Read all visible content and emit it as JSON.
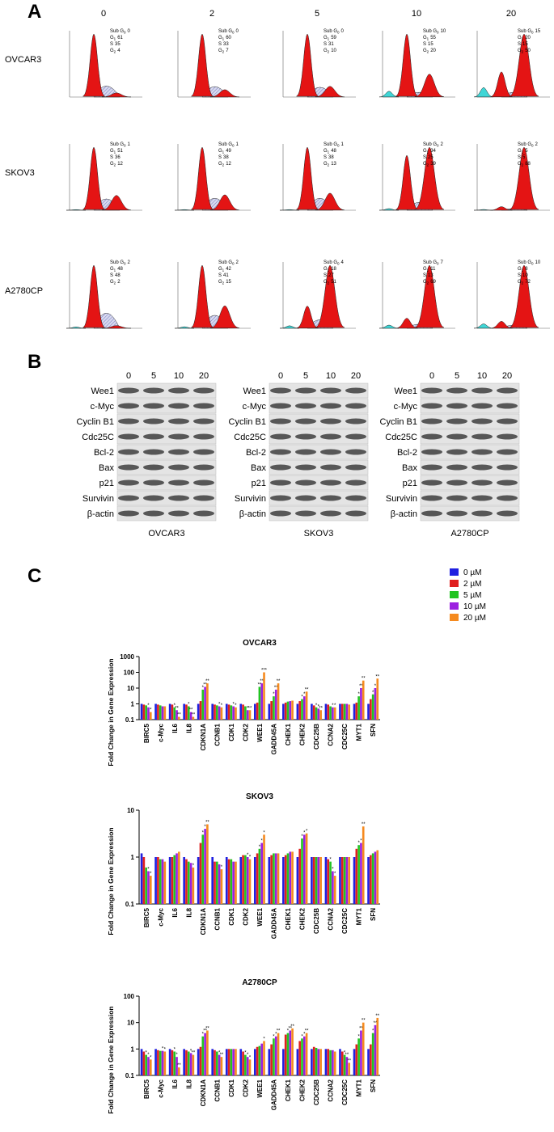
{
  "panel_a": {
    "label": "A",
    "columns": [
      0,
      2,
      5,
      10,
      20
    ],
    "phases": [
      {
        "label": "Sub G",
        "sub": "0"
      },
      {
        "label": "G",
        "sub": "1"
      },
      {
        "label": "S"
      },
      {
        "label": "G",
        "sub": "2"
      }
    ],
    "rows": [
      {
        "name": "OVCAR3",
        "values": [
          [
            0,
            61,
            35,
            4
          ],
          [
            0,
            60,
            33,
            7
          ],
          [
            0,
            59,
            31,
            10
          ],
          [
            10,
            55,
            15,
            20
          ],
          [
            15,
            20,
            15,
            50
          ]
        ]
      },
      {
        "name": "SKOV3",
        "values": [
          [
            1,
            51,
            36,
            12
          ],
          [
            1,
            49,
            38,
            12
          ],
          [
            1,
            48,
            38,
            13
          ],
          [
            2,
            34,
            25,
            39
          ],
          [
            2,
            5,
            5,
            88
          ]
        ]
      },
      {
        "name": "A2780CP",
        "values": [
          [
            2,
            48,
            48,
            2
          ],
          [
            2,
            42,
            41,
            15
          ],
          [
            4,
            18,
            27,
            51
          ],
          [
            7,
            11,
            13,
            69
          ],
          [
            10,
            8,
            10,
            72
          ]
        ]
      }
    ]
  },
  "panel_b": {
    "label": "B",
    "lanes": [
      0,
      5,
      10,
      20
    ],
    "proteins": [
      "Wee1",
      "c-Myc",
      "Cyclin B1",
      "Cdc25C",
      "Bcl-2",
      "Bax",
      "p21",
      "Survivin",
      "β-actin"
    ],
    "blots": [
      "OVCAR3",
      "SKOV3",
      "A2780CP"
    ]
  },
  "panel_c": {
    "label": "C"
  },
  "chart_data": [
    {
      "type": "bar",
      "title": "OVCAR3",
      "y_label": "Fold Change in Gene Expression",
      "log_scale": true,
      "ylim": [
        0.1,
        1000
      ],
      "yticks": [
        0.1,
        1,
        10,
        100,
        1000
      ],
      "categories": [
        "BIRC5",
        "c-Myc",
        "IL6",
        "IL8",
        "CDKN1A",
        "CCNB1",
        "CDK1",
        "CDK2",
        "WEE1",
        "GADD45A",
        "CHEK1",
        "CHEK2",
        "CDC25B",
        "CCNA2",
        "CDC25C",
        "MYT1",
        "SFN"
      ],
      "series": [
        {
          "name": "0 µM",
          "color": "#1f1fe0",
          "values": [
            1,
            1,
            1,
            1,
            1,
            1,
            1,
            1,
            1,
            1,
            1,
            1,
            1,
            1,
            1,
            1,
            1
          ]
        },
        {
          "name": "2 µM",
          "color": "#e01f1f",
          "values": [
            0.9,
            0.9,
            0.9,
            0.9,
            1.5,
            0.9,
            0.9,
            0.9,
            1.2,
            1.5,
            1.2,
            1.5,
            0.8,
            0.9,
            1,
            1.2,
            2
          ]
        },
        {
          "name": "5 µM",
          "color": "#22c422",
          "values": [
            0.8,
            0.8,
            0.6,
            0.7,
            8,
            0.8,
            0.8,
            0.7,
            12,
            3,
            1.4,
            2,
            0.6,
            0.7,
            1,
            3,
            4
          ],
          "stars": [
            null,
            null,
            "*",
            "*",
            "*",
            null,
            null,
            null,
            "**",
            "*",
            null,
            "*",
            "*",
            null,
            null,
            "*",
            "*"
          ]
        },
        {
          "name": "10 µM",
          "color": "#9b1fe0",
          "values": [
            0.6,
            0.7,
            0.4,
            0.3,
            12,
            0.7,
            0.7,
            0.4,
            20,
            8,
            1.5,
            3,
            0.5,
            0.6,
            1,
            10,
            10
          ],
          "stars": [
            "*",
            null,
            "**",
            "**",
            "**",
            "*",
            "*",
            "*",
            "**",
            "**",
            null,
            "*",
            "*",
            "*",
            null,
            "**",
            "*"
          ]
        },
        {
          "name": "20 µM",
          "color": "#f58a1f",
          "values": [
            0.3,
            0.7,
            0.15,
            0.15,
            20,
            0.6,
            0.6,
            0.4,
            100,
            20,
            1.6,
            6,
            0.4,
            0.6,
            0.9,
            30,
            40
          ],
          "stars": [
            "*",
            null,
            "**",
            "**",
            "**",
            "*",
            "*",
            "**",
            "***",
            "**",
            null,
            "**",
            "**",
            "*",
            null,
            "**",
            "**"
          ]
        }
      ]
    },
    {
      "type": "bar",
      "title": "SKOV3",
      "y_label": "Fold Change in Gene Expression",
      "log_scale": true,
      "ylim": [
        0.1,
        10
      ],
      "yticks": [
        0.1,
        1,
        10
      ],
      "categories": [
        "BIRC5",
        "c-Myc",
        "IL6",
        "IL8",
        "CDKN1A",
        "CCNB1",
        "CDK1",
        "CDK2",
        "WEE1",
        "GADD45A",
        "CHEK1",
        "CHEK2",
        "CDC25B",
        "CCNA2",
        "CDC25C",
        "MYT1",
        "SFN"
      ],
      "series": [
        {
          "values": [
            1.2,
            1,
            1,
            1,
            1,
            1,
            1,
            1,
            1,
            1,
            1,
            1,
            1,
            1,
            1,
            1,
            1
          ]
        },
        {
          "values": [
            1,
            1,
            1,
            0.9,
            2,
            0.8,
            0.9,
            1.1,
            1.2,
            1.1,
            1.1,
            1.5,
            1,
            0.9,
            1,
            1.5,
            1.1
          ]
        },
        {
          "values": [
            0.6,
            0.9,
            1.1,
            0.8,
            3,
            0.8,
            0.9,
            1.1,
            1.5,
            1.2,
            1.2,
            2.5,
            1,
            0.8,
            1,
            1.8,
            1.2
          ],
          "stars": [
            null,
            null,
            null,
            null,
            "*",
            null,
            null,
            null,
            "*",
            null,
            null,
            "*",
            null,
            "*",
            null,
            "*",
            null
          ]
        },
        {
          "values": [
            0.5,
            0.9,
            1.2,
            0.75,
            4,
            0.7,
            0.8,
            1,
            2,
            1.2,
            1.3,
            3,
            1,
            0.5,
            1,
            2,
            1.3
          ],
          "stars": [
            "*",
            null,
            null,
            null,
            "*",
            null,
            null,
            "*",
            "*",
            null,
            null,
            "*",
            null,
            "*",
            null,
            "*",
            null
          ]
        },
        {
          "values": [
            0.4,
            0.8,
            1.3,
            0.6,
            5,
            0.55,
            0.8,
            0.9,
            3,
            1.2,
            1.3,
            3.2,
            1,
            0.4,
            1,
            4.5,
            1.4
          ],
          "stars": [
            "*",
            null,
            null,
            "*",
            "**",
            "*",
            null,
            "*",
            "*",
            null,
            null,
            "*",
            null,
            "*",
            null,
            "**",
            null
          ]
        }
      ]
    },
    {
      "type": "bar",
      "title": "A2780CP",
      "y_label": "Fold Change in Gene Expression",
      "log_scale": true,
      "ylim": [
        0.1,
        100
      ],
      "yticks": [
        0.1,
        1,
        10,
        100
      ],
      "categories": [
        "BIRC5",
        "c-Myc",
        "IL6",
        "IL8",
        "CDKN1A",
        "CCNB1",
        "CDK1",
        "CDK2",
        "WEE1",
        "GADD45A",
        "CHEK1",
        "CHEK2",
        "CDC25B",
        "CCNA2",
        "CDC25C",
        "MYT1",
        "SFN"
      ],
      "series": [
        {
          "values": [
            1,
            1,
            1,
            1,
            1,
            1,
            1,
            1,
            1,
            1,
            1,
            1,
            1,
            1,
            1,
            1,
            1
          ]
        },
        {
          "values": [
            0.8,
            0.9,
            0.9,
            0.9,
            1.2,
            0.9,
            1,
            0.8,
            1.2,
            1.5,
            3.5,
            2,
            1.2,
            1,
            0.8,
            1.5,
            1.5
          ]
        },
        {
          "values": [
            0.6,
            0.85,
            0.8,
            0.8,
            3,
            0.8,
            1,
            0.6,
            1.3,
            2.5,
            4,
            2.5,
            1.1,
            0.9,
            0.6,
            2.5,
            4
          ],
          "stars": [
            "*",
            null,
            "*",
            null,
            "*",
            null,
            null,
            "*",
            null,
            "*",
            "*",
            "*",
            null,
            null,
            "*",
            "*",
            "*"
          ]
        },
        {
          "values": [
            0.5,
            0.85,
            0.5,
            0.7,
            4,
            0.6,
            1,
            0.5,
            1.6,
            3,
            5,
            3,
            1,
            0.9,
            0.5,
            5,
            8
          ],
          "stars": [
            "*",
            "*",
            "*",
            "*",
            "**",
            "*",
            null,
            "*",
            null,
            "*",
            "**",
            "*",
            null,
            null,
            "**",
            "**",
            "**"
          ]
        },
        {
          "values": [
            0.4,
            0.8,
            0.2,
            0.6,
            5,
            0.5,
            1,
            0.4,
            2,
            4,
            6,
            4,
            1,
            0.8,
            0.3,
            10,
            15
          ],
          "stars": [
            "*",
            "*",
            "**",
            "**",
            "**",
            "**",
            null,
            "*",
            "*",
            "**",
            "**",
            "**",
            null,
            null,
            "**",
            "**",
            "**"
          ]
        }
      ]
    }
  ]
}
